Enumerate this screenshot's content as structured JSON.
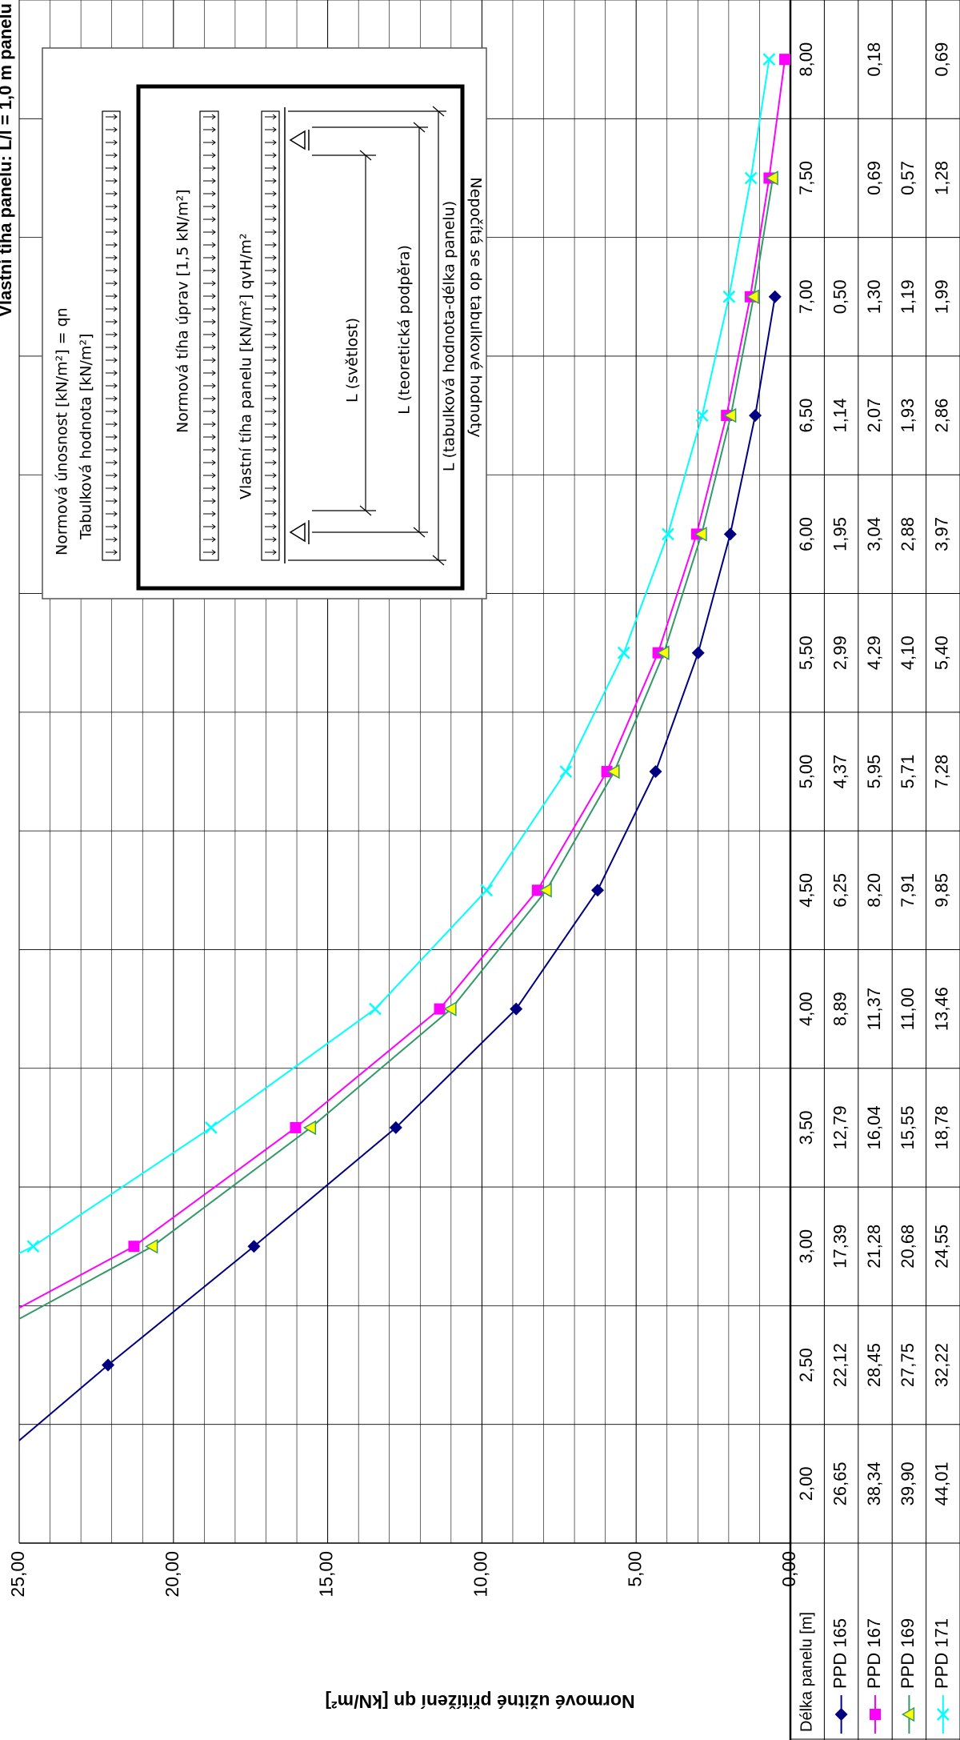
{
  "chart_data": {
    "type": "line",
    "title": "Vlastní tíha panelu: L/l = 1,0 m panelu",
    "y_label": "Normové užitné přitížení qn [kN/m²]",
    "x_label": "Délka panelu [m]",
    "categories": [
      "2,00",
      "2,50",
      "3,00",
      "3,50",
      "4,00",
      "4,50",
      "5,00",
      "5,50",
      "6,00",
      "6,50",
      "7,00",
      "7,50",
      "8,00"
    ],
    "series": [
      {
        "name": "PPD 165",
        "color": "#000080",
        "marker": "diamond",
        "marker_color": "#000080",
        "values": [
          26.65,
          22.12,
          17.39,
          12.79,
          8.89,
          6.25,
          4.37,
          2.99,
          1.95,
          1.14,
          0.5,
          null,
          null
        ],
        "value_labels": [
          "26,65",
          "22,12",
          "17,39",
          "12,79",
          "8,89",
          "6,25",
          "4,37",
          "2,99",
          "1,95",
          "1,14",
          "0,50",
          null,
          null
        ]
      },
      {
        "name": "PPD 167",
        "color": "#ff00ff",
        "marker": "square",
        "marker_color": "#ff00ff",
        "values": [
          38.34,
          28.45,
          21.28,
          16.04,
          11.37,
          8.2,
          5.95,
          4.29,
          3.04,
          2.07,
          1.3,
          0.69,
          0.18
        ],
        "value_labels": [
          "38,34",
          "28,45",
          "21,28",
          "16,04",
          "11,37",
          "8,20",
          "5,95",
          "4,29",
          "3,04",
          "2,07",
          "1,30",
          "0,69",
          "0,18"
        ]
      },
      {
        "name": "PPD 169",
        "color": "#339966",
        "marker": "triangle",
        "marker_color": "#ffff00",
        "values": [
          39.9,
          27.75,
          20.68,
          15.55,
          11.0,
          7.91,
          5.71,
          4.1,
          2.88,
          1.93,
          1.19,
          0.57,
          null
        ],
        "value_labels": [
          "39,90",
          "27,75",
          "20,68",
          "15,55",
          "11,00",
          "7,91",
          "5,71",
          "4,10",
          "2,88",
          "1,93",
          "1,19",
          "0,57",
          null
        ]
      },
      {
        "name": "PPD 171",
        "color": "#00ffff",
        "marker": "x",
        "marker_color": "#00ffff",
        "values": [
          44.01,
          32.22,
          24.55,
          18.78,
          13.46,
          9.85,
          7.28,
          5.4,
          3.97,
          2.86,
          1.99,
          1.28,
          0.69
        ],
        "value_labels": [
          "44,01",
          "32,22",
          "24,55",
          "18,78",
          "13,46",
          "9,85",
          "7,28",
          "5,40",
          "3,97",
          "2,86",
          "1,99",
          "1,28",
          "0,69"
        ]
      }
    ],
    "ylim": [
      0,
      25
    ],
    "yticks": [
      {
        "value": 0,
        "label": "0,00"
      },
      {
        "value": 5,
        "label": "5,00"
      },
      {
        "value": 10,
        "label": "10,00"
      },
      {
        "value": 15,
        "label": "15,00"
      },
      {
        "value": 20,
        "label": "20,00"
      },
      {
        "value": 25,
        "label": "25,00"
      }
    ],
    "grid": true
  },
  "inset": {
    "load1": "Normová únosnost [kN/m²] = qn",
    "load1b": "Tabulková hodnota [kN/m²]",
    "load2": "Normová tíha úprav [1,5 kN/m²]",
    "load3": "Vlastní tíha panelu [kN/m²]   qvH/m²",
    "dim1": "L (světlost)",
    "dim2": "L (teoretická podpěra)",
    "dim3": "L (tabulková hodnota-délka panelu)",
    "note": "Nepočítá se do tabulkové hodnoty"
  }
}
